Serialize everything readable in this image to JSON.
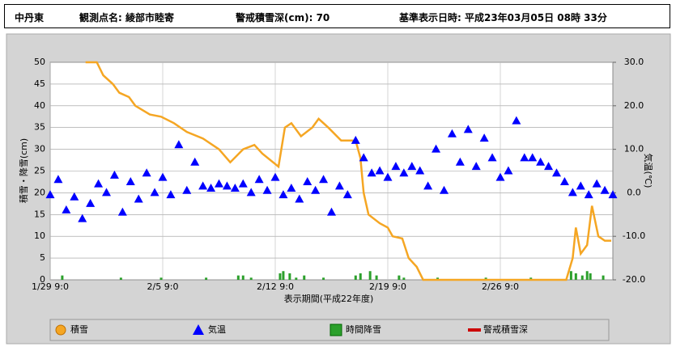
{
  "header": {
    "region": "中丹東",
    "station": "観測点名: 綾部市睦寄",
    "warning": "警戒積雪深(cm): 70",
    "datetime": "基準表示日時: 平成23年03月05日 08時 33分"
  },
  "chart_data": {
    "type": "line",
    "xlabel": "表示期間(平成22年度)",
    "ylabel": "積雪・降雪(cm)",
    "y2label": "気温(℃)",
    "xlim": [
      0,
      35
    ],
    "ylim": [
      0,
      50
    ],
    "y2lim": [
      -20,
      30
    ],
    "xticks": [
      {
        "value": 0,
        "label": "1/29 9:0"
      },
      {
        "value": 7,
        "label": "2/5 9:0"
      },
      {
        "value": 14,
        "label": "2/12 9:0"
      },
      {
        "value": 21,
        "label": "2/19 9:0"
      },
      {
        "value": 28,
        "label": "2/26 9:0"
      }
    ],
    "yticks": [
      0,
      5,
      10,
      15,
      20,
      25,
      30,
      35,
      40,
      45,
      50
    ],
    "y2ticks": [
      {
        "value": -20,
        "label": "-20.0"
      },
      {
        "value": -10,
        "label": "-10.0"
      },
      {
        "value": 0,
        "label": "0.0"
      },
      {
        "value": 10,
        "label": "10.0"
      },
      {
        "value": 20,
        "label": "20.0"
      },
      {
        "value": 30,
        "label": "30.0"
      }
    ],
    "grid": true,
    "series": [
      {
        "name": "積雪",
        "color": "#f5a623",
        "mark": "line",
        "x": [
          2.2,
          2.9,
          3.3,
          3.9,
          4.3,
          4.9,
          5.3,
          6.2,
          6.9,
          7.7,
          8.5,
          9.5,
          10.5,
          11.2,
          12,
          12.7,
          13.2,
          14.2,
          14.6,
          15,
          15.6,
          16.3,
          16.7,
          17.3,
          18.1,
          19,
          19.3,
          19.5,
          19.8,
          20.5,
          21,
          21.3,
          21.9,
          22.3,
          22.8,
          23.2,
          32.1,
          32.5,
          32.7,
          33,
          33.4,
          33.7,
          34.1,
          34.5,
          34.9
        ],
        "values": [
          50,
          50,
          47,
          45,
          43,
          42,
          40,
          38,
          37.5,
          36,
          34,
          32.5,
          30,
          27,
          30,
          31,
          29,
          26,
          35,
          36,
          33,
          35,
          37,
          35,
          32,
          32,
          28,
          20,
          15,
          13,
          12,
          10,
          9.5,
          5,
          3,
          0,
          0,
          5,
          12,
          6,
          8,
          17,
          10,
          9,
          9
        ]
      },
      {
        "name": "気温",
        "color": "#0000ff",
        "mark": "triangle",
        "axis": "y2",
        "x": [
          0,
          0.5,
          1,
          1.5,
          2,
          2.5,
          3,
          3.5,
          4,
          4.5,
          5,
          5.5,
          6,
          6.5,
          7,
          7.5,
          8,
          8.5,
          9,
          9.5,
          10,
          10.5,
          11,
          11.5,
          12,
          12.5,
          13,
          13.5,
          14,
          14.5,
          15,
          15.5,
          16,
          16.5,
          17,
          17.5,
          18,
          18.5,
          19,
          19.5,
          20,
          20.5,
          21,
          21.5,
          22,
          22.5,
          23,
          23.5,
          24,
          24.5,
          25,
          25.5,
          26,
          26.5,
          27,
          27.5,
          28,
          28.5,
          29,
          29.5,
          30,
          30.5,
          31,
          31.5,
          32,
          32.5,
          33,
          33.5,
          34,
          34.5,
          35
        ],
        "values": [
          -0.5,
          3,
          -4,
          -1,
          -6,
          -2.5,
          2,
          0,
          4,
          -4.5,
          2.5,
          -1.5,
          4.5,
          0,
          3.5,
          -0.5,
          11,
          0.5,
          7,
          1.5,
          1,
          2,
          1.5,
          1,
          2,
          0,
          3,
          0.5,
          3.5,
          -0.5,
          1,
          -1.5,
          2.5,
          0.5,
          3,
          -4.5,
          1.5,
          -0.5,
          12,
          8,
          4.5,
          5,
          3.5,
          6,
          4.5,
          6,
          5,
          1.5,
          10,
          0.5,
          13.5,
          7,
          14.5,
          6,
          12.5,
          8,
          3.5,
          5,
          16.5,
          8,
          8,
          7,
          6,
          4.5,
          2.5,
          0,
          1.5,
          -0.5,
          2,
          0.5,
          -0.5
        ]
      },
      {
        "name": "時間降雪",
        "color": "#2ca02c",
        "mark": "bar",
        "x": [
          0.75,
          4.4,
          6.9,
          9.7,
          11.7,
          12,
          12.5,
          14.3,
          14.5,
          14.9,
          15.3,
          15.8,
          17,
          19,
          19.3,
          19.9,
          20.3,
          21.7,
          22,
          24.1,
          27.1,
          29.9,
          32.4,
          32.7,
          33.1,
          33.4,
          33.6,
          34.4
        ],
        "values": [
          1,
          0.5,
          0.5,
          0.5,
          1,
          1,
          0.5,
          1.5,
          2,
          1.5,
          0.5,
          1,
          0.5,
          1,
          1.5,
          2,
          1,
          1,
          0.5,
          0.5,
          0.5,
          0.5,
          2,
          1.5,
          1,
          2,
          1.5,
          1
        ]
      },
      {
        "name": "警戒積雪深",
        "color": "#cc0000",
        "mark": "threshold"
      }
    ]
  }
}
